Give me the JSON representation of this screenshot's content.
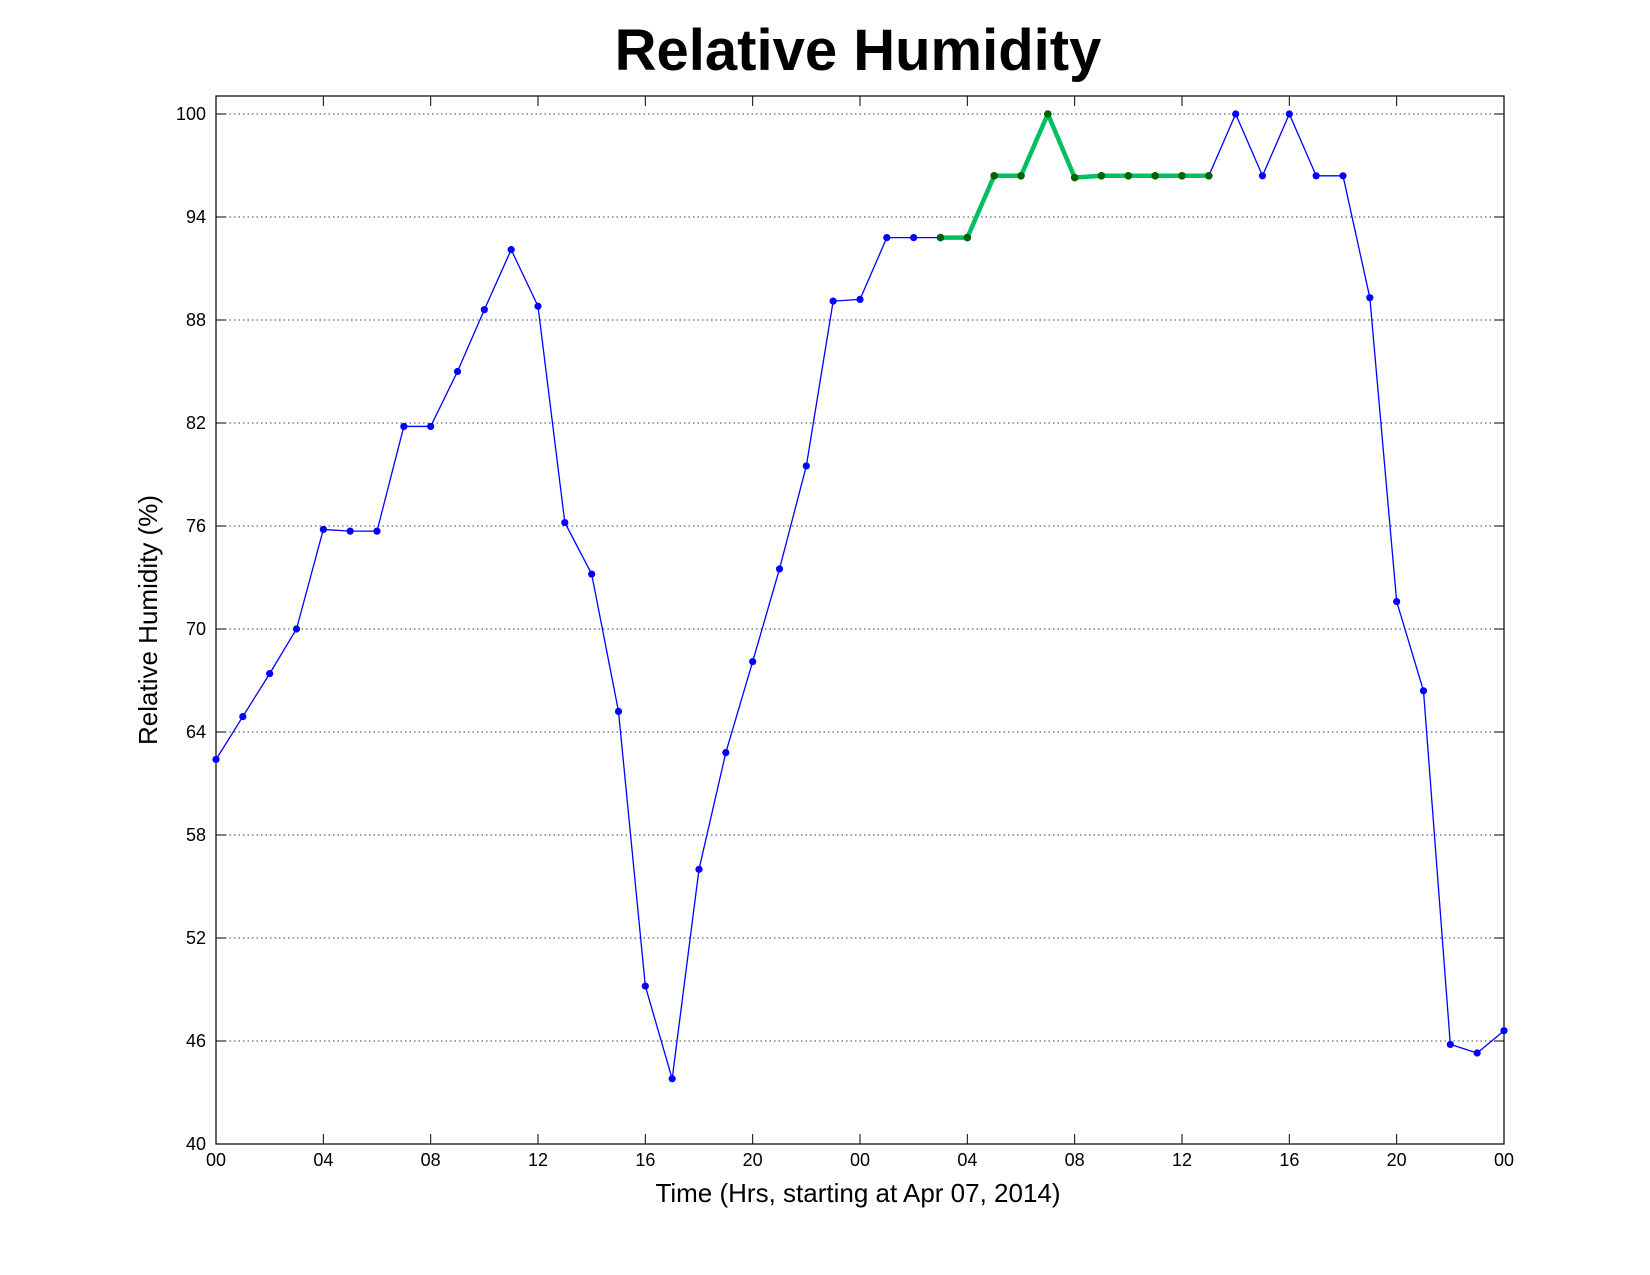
{
  "chart_data": {
    "type": "line",
    "title": "Relative Humidity",
    "xlabel": "Time (Hrs, starting at Apr 07, 2014)",
    "ylabel": "Relative Humidity (%)",
    "xlim": [
      0,
      48
    ],
    "ylim": [
      40,
      100
    ],
    "grid": "horizontal-dotted",
    "x_tick_values": [
      0,
      4,
      8,
      12,
      16,
      20,
      24,
      28,
      32,
      36,
      40,
      44,
      48
    ],
    "x_tick_labels": [
      "00",
      "04",
      "08",
      "12",
      "16",
      "20",
      "00",
      "04",
      "08",
      "12",
      "16",
      "20",
      "00"
    ],
    "y_ticks": [
      40,
      46,
      52,
      58,
      64,
      70,
      76,
      82,
      88,
      94,
      100
    ],
    "colors": {
      "main": "#0000ff",
      "highlight_line": "#00c060",
      "highlight_marker": "#006400"
    },
    "series": [
      {
        "style": "main",
        "x": [
          0,
          1,
          2,
          3,
          4,
          5,
          6,
          7,
          8,
          9,
          10,
          11,
          12,
          13,
          14,
          15,
          16,
          17,
          18,
          19,
          20,
          21,
          22,
          23,
          24,
          25,
          26,
          27,
          28,
          29,
          30,
          31,
          32,
          33,
          34,
          35,
          36,
          37,
          38,
          39,
          40,
          41,
          42,
          43,
          44,
          45,
          46,
          47,
          48
        ],
        "y": [
          62.4,
          64.9,
          67.4,
          70.0,
          75.8,
          75.7,
          75.7,
          81.8,
          81.8,
          85.0,
          88.6,
          92.1,
          88.8,
          76.2,
          73.2,
          65.2,
          49.2,
          43.8,
          56.0,
          62.8,
          68.1,
          73.5,
          79.5,
          89.1,
          89.2,
          92.8,
          92.8,
          92.8,
          92.8,
          96.4,
          96.4,
          100.0,
          96.3,
          96.4,
          96.4,
          96.4,
          96.4,
          96.4,
          100.0,
          96.4,
          100.0,
          96.4,
          96.4,
          89.3,
          71.6,
          66.4,
          45.8,
          45.3,
          46.6
        ]
      },
      {
        "style": "highlight",
        "x": [
          27,
          28,
          29,
          30,
          31,
          32,
          33,
          34,
          35,
          36,
          37
        ],
        "y": [
          92.8,
          92.8,
          96.4,
          96.4,
          100.0,
          96.3,
          96.4,
          96.4,
          96.4,
          96.4,
          96.4
        ]
      }
    ]
  }
}
